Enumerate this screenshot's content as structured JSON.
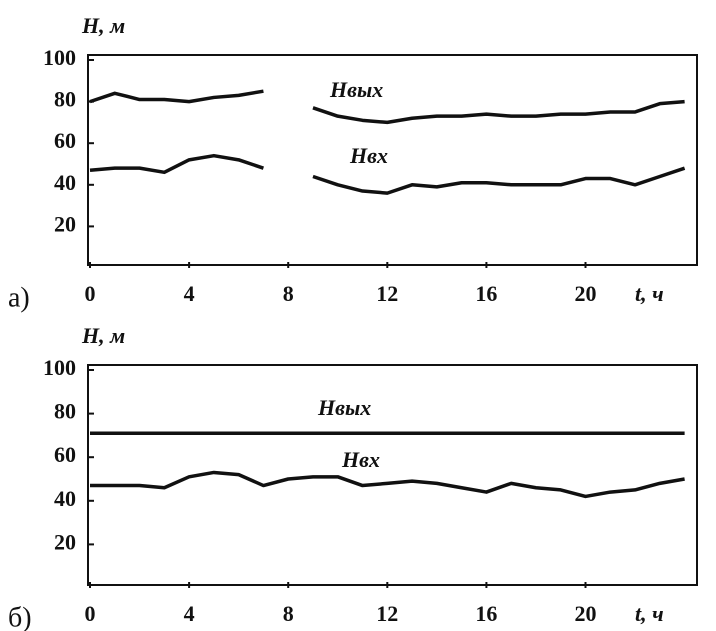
{
  "chart_data": [
    {
      "type": "line",
      "panel_label": "а)",
      "y_label": "H, м",
      "x_label": "t, ч",
      "xlim": [
        0,
        24.5
      ],
      "xticks": [
        0,
        4,
        8,
        12,
        16,
        20
      ],
      "ylim": [
        0,
        100
      ],
      "yticks": [
        20,
        40,
        60,
        80,
        100
      ],
      "x": [
        0,
        1,
        2,
        3,
        4,
        5,
        6,
        7,
        8,
        9,
        10,
        11,
        12,
        13,
        14,
        15,
        16,
        17,
        18,
        19,
        20,
        21,
        22,
        23,
        24
      ],
      "series": [
        {
          "name": "Hвых",
          "color": "#111111",
          "values": [
            80,
            84,
            81,
            81,
            80,
            82,
            83,
            85,
            null,
            77,
            73,
            71,
            70,
            72,
            73,
            73,
            74,
            73,
            73,
            74,
            74,
            75,
            75,
            79,
            80
          ]
        },
        {
          "name": "Hвх",
          "color": "#111111",
          "values": [
            47,
            48,
            48,
            46,
            52,
            54,
            52,
            48,
            null,
            44,
            40,
            37,
            36,
            40,
            39,
            41,
            41,
            40,
            40,
            40,
            43,
            43,
            40,
            44,
            48
          ]
        }
      ]
    },
    {
      "type": "line",
      "panel_label": "б)",
      "y_label": "H, м",
      "x_label": "t, ч",
      "xlim": [
        0,
        24.5
      ],
      "xticks": [
        0,
        4,
        8,
        12,
        16,
        20
      ],
      "ylim": [
        0,
        100
      ],
      "yticks": [
        20,
        40,
        60,
        80,
        100
      ],
      "x": [
        0,
        1,
        2,
        3,
        4,
        5,
        6,
        7,
        8,
        9,
        10,
        11,
        12,
        13,
        14,
        15,
        16,
        17,
        18,
        19,
        20,
        21,
        22,
        23,
        24
      ],
      "series": [
        {
          "name": "Hвых",
          "color": "#111111",
          "values": [
            71,
            71,
            71,
            71,
            71,
            71,
            71,
            71,
            71,
            71,
            71,
            71,
            71,
            71,
            71,
            71,
            71,
            71,
            71,
            71,
            71,
            71,
            71,
            71,
            71
          ]
        },
        {
          "name": "Hвх",
          "color": "#111111",
          "values": [
            47,
            47,
            47,
            46,
            51,
            53,
            52,
            47,
            50,
            51,
            51,
            47,
            48,
            49,
            48,
            46,
            44,
            48,
            46,
            45,
            42,
            44,
            45,
            48,
            50
          ]
        }
      ]
    }
  ]
}
